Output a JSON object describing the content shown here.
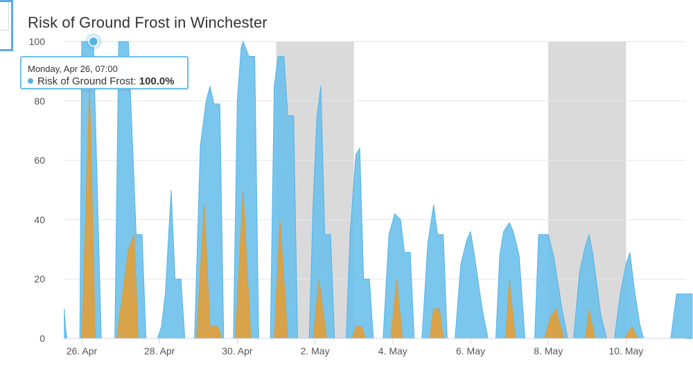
{
  "title": "Risk of Ground Frost in Winchester",
  "colors": {
    "risk_area": "#6cc0eb",
    "severe_area": "#e0a03c",
    "weekend_band": "#dadada",
    "gridline": "#e6e6e6",
    "tooltip_border": "#6cc0eb"
  },
  "tooltip": {
    "date": "Monday, Apr 26, 07:00",
    "series": "Risk of Ground Frost",
    "separator": ":",
    "value": "100.0%"
  },
  "chart_data": {
    "type": "area",
    "title": "Risk of Ground Frost in Winchester",
    "x_unit": "days from Apr 26 00:00",
    "xlim": [
      -0.45,
      15.7
    ],
    "ylim": [
      0,
      100
    ],
    "y_ticks": [
      0,
      20,
      40,
      60,
      80,
      100
    ],
    "x_ticks": [
      {
        "x": 0,
        "label": "26. Apr"
      },
      {
        "x": 2,
        "label": "28. Apr"
      },
      {
        "x": 4,
        "label": "30. Apr"
      },
      {
        "x": 6,
        "label": "2. May"
      },
      {
        "x": 8,
        "label": "4. May"
      },
      {
        "x": 10,
        "label": "6. May"
      },
      {
        "x": 12,
        "label": "8. May"
      },
      {
        "x": 14,
        "label": "10. May"
      }
    ],
    "grid": true,
    "legend": "none",
    "shaded_bands": [
      {
        "from": 5.0,
        "to": 7.0
      },
      {
        "from": 12.0,
        "to": 14.0
      }
    ],
    "series": [
      {
        "name": "Risk of Ground Frost",
        "points": [
          [
            -0.45,
            10
          ],
          [
            -0.42,
            4
          ],
          [
            -0.38,
            0
          ],
          [
            -0.05,
            0
          ],
          [
            0.0,
            100
          ],
          [
            0.3,
            100
          ],
          [
            0.5,
            0
          ],
          [
            0.85,
            0
          ],
          [
            0.95,
            100
          ],
          [
            1.2,
            100
          ],
          [
            1.4,
            35
          ],
          [
            1.55,
            35
          ],
          [
            1.65,
            0
          ],
          [
            1.95,
            0
          ],
          [
            2.05,
            4
          ],
          [
            2.15,
            15
          ],
          [
            2.3,
            50
          ],
          [
            2.4,
            20
          ],
          [
            2.55,
            20
          ],
          [
            2.65,
            0
          ],
          [
            2.9,
            0
          ],
          [
            3.05,
            65
          ],
          [
            3.2,
            80
          ],
          [
            3.3,
            85
          ],
          [
            3.4,
            79
          ],
          [
            3.55,
            79
          ],
          [
            3.65,
            0
          ],
          [
            3.9,
            0
          ],
          [
            4.0,
            80
          ],
          [
            4.1,
            98
          ],
          [
            4.15,
            100
          ],
          [
            4.3,
            95
          ],
          [
            4.45,
            95
          ],
          [
            4.55,
            0
          ],
          [
            4.85,
            0
          ],
          [
            4.95,
            85
          ],
          [
            5.05,
            95
          ],
          [
            5.2,
            95
          ],
          [
            5.3,
            75
          ],
          [
            5.45,
            75
          ],
          [
            5.55,
            0
          ],
          [
            5.85,
            0
          ],
          [
            5.95,
            45
          ],
          [
            6.05,
            75
          ],
          [
            6.15,
            85
          ],
          [
            6.25,
            35
          ],
          [
            6.4,
            35
          ],
          [
            6.5,
            0
          ],
          [
            6.8,
            0
          ],
          [
            6.9,
            35
          ],
          [
            7.05,
            62
          ],
          [
            7.15,
            64
          ],
          [
            7.25,
            20
          ],
          [
            7.4,
            20
          ],
          [
            7.5,
            0
          ],
          [
            7.75,
            0
          ],
          [
            7.9,
            35
          ],
          [
            8.05,
            42
          ],
          [
            8.2,
            40
          ],
          [
            8.3,
            29
          ],
          [
            8.45,
            29
          ],
          [
            8.55,
            0
          ],
          [
            8.75,
            0
          ],
          [
            8.9,
            32
          ],
          [
            9.05,
            45
          ],
          [
            9.15,
            35
          ],
          [
            9.3,
            35
          ],
          [
            9.4,
            0
          ],
          [
            9.6,
            0
          ],
          [
            9.75,
            25
          ],
          [
            9.9,
            33
          ],
          [
            10.0,
            36
          ],
          [
            10.1,
            28
          ],
          [
            10.3,
            10
          ],
          [
            10.45,
            0
          ],
          [
            10.65,
            0
          ],
          [
            10.75,
            28
          ],
          [
            10.85,
            36
          ],
          [
            11.0,
            39
          ],
          [
            11.1,
            36
          ],
          [
            11.25,
            28
          ],
          [
            11.4,
            0
          ],
          [
            11.65,
            0
          ],
          [
            11.75,
            35
          ],
          [
            11.9,
            35
          ],
          [
            12.0,
            35
          ],
          [
            12.15,
            27
          ],
          [
            12.35,
            10
          ],
          [
            12.5,
            0
          ],
          [
            12.65,
            0
          ],
          [
            12.8,
            22
          ],
          [
            12.95,
            31
          ],
          [
            13.05,
            35
          ],
          [
            13.15,
            28
          ],
          [
            13.35,
            8
          ],
          [
            13.5,
            0
          ],
          [
            13.7,
            0
          ],
          [
            13.85,
            15
          ],
          [
            14.0,
            25
          ],
          [
            14.1,
            29
          ],
          [
            14.2,
            18
          ],
          [
            14.35,
            5
          ],
          [
            14.45,
            0
          ],
          [
            15.15,
            0
          ],
          [
            15.3,
            15
          ],
          [
            15.6,
            15
          ],
          [
            15.7,
            15
          ]
        ]
      },
      {
        "name": "",
        "points": [
          [
            0.0,
            0
          ],
          [
            0.2,
            85
          ],
          [
            0.35,
            0
          ],
          [
            0.9,
            0
          ],
          [
            1.2,
            30
          ],
          [
            1.35,
            35
          ],
          [
            1.45,
            0
          ],
          [
            2.95,
            0
          ],
          [
            3.15,
            45
          ],
          [
            3.3,
            4
          ],
          [
            3.5,
            4
          ],
          [
            3.6,
            0
          ],
          [
            3.95,
            0
          ],
          [
            4.15,
            50
          ],
          [
            4.35,
            0
          ],
          [
            4.95,
            0
          ],
          [
            5.1,
            40
          ],
          [
            5.3,
            0
          ],
          [
            5.95,
            0
          ],
          [
            6.1,
            20
          ],
          [
            6.3,
            0
          ],
          [
            6.95,
            0
          ],
          [
            7.05,
            4
          ],
          [
            7.2,
            4
          ],
          [
            7.3,
            0
          ],
          [
            7.95,
            0
          ],
          [
            8.1,
            20
          ],
          [
            8.25,
            0
          ],
          [
            8.95,
            0
          ],
          [
            9.05,
            10
          ],
          [
            9.2,
            10
          ],
          [
            9.3,
            0
          ],
          [
            10.9,
            0
          ],
          [
            11.0,
            20
          ],
          [
            11.15,
            0
          ],
          [
            11.9,
            0
          ],
          [
            12.05,
            7
          ],
          [
            12.2,
            10
          ],
          [
            12.4,
            0
          ],
          [
            12.95,
            0
          ],
          [
            13.05,
            10
          ],
          [
            13.2,
            0
          ],
          [
            13.95,
            0
          ],
          [
            14.15,
            4
          ],
          [
            14.3,
            0
          ]
        ]
      }
    ],
    "highlighted_point": {
      "series": "Risk of Ground Frost",
      "x": 0.3,
      "y": 100
    }
  }
}
